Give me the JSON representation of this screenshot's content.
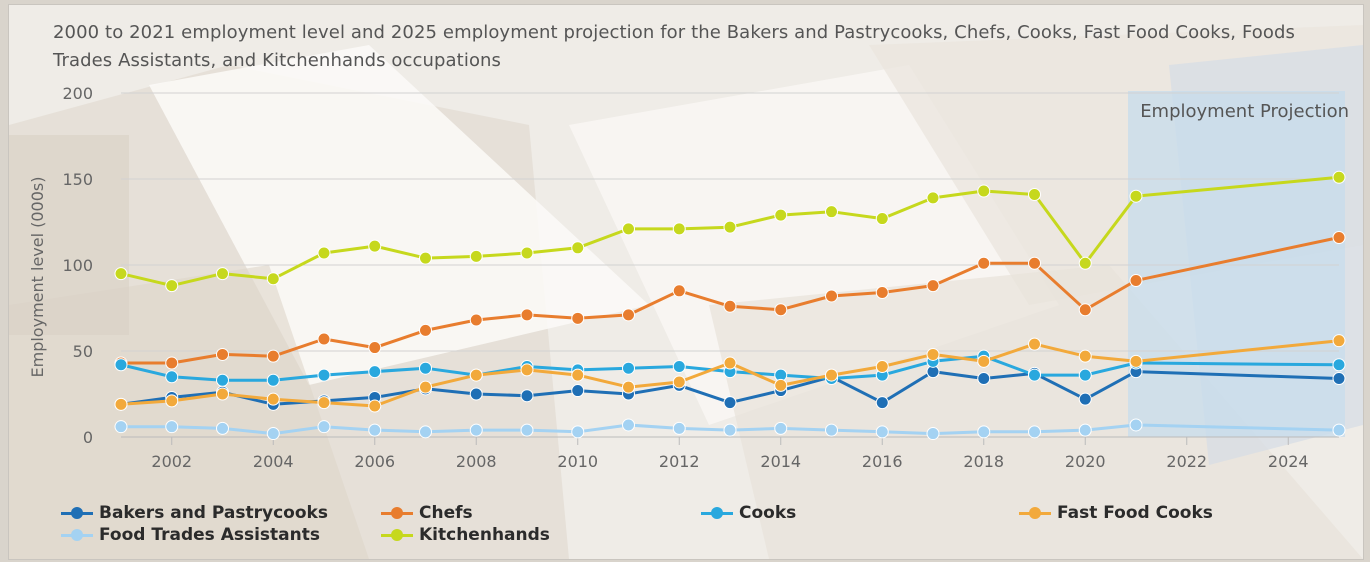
{
  "chart_data": {
    "type": "line",
    "title": "2000 to 2021 employment level and 2025 employment projection for the Bakers and Pastrycooks, Chefs, Cooks, Fast Food Cooks, Foods Trades Assistants, and Kitchenhands occupations",
    "ylabel": "Employment level (000s)",
    "xlabel": "",
    "xlim": [
      2001,
      2025
    ],
    "ylim": [
      0,
      200
    ],
    "x_ticks": [
      "2002",
      "2004",
      "2006",
      "2008",
      "2010",
      "2012",
      "2014",
      "2016",
      "2018",
      "2020",
      "2022",
      "2024"
    ],
    "y_ticks": [
      "0",
      "50",
      "100",
      "150",
      "200"
    ],
    "grid": "horizontal",
    "legend_position": "bottom",
    "annotation": "Employment Projection",
    "projection_range": [
      2021,
      2025
    ],
    "series": [
      {
        "name": "Bakers and Pastrycooks",
        "color": "#1f6fb5",
        "x": [
          2001,
          2002,
          2003,
          2004,
          2005,
          2006,
          2007,
          2008,
          2009,
          2010,
          2011,
          2012,
          2013,
          2014,
          2015,
          2016,
          2017,
          2018,
          2019,
          2020,
          2021,
          2025
        ],
        "y": [
          19,
          23,
          26,
          19,
          21,
          23,
          28,
          25,
          24,
          27,
          25,
          30,
          20,
          27,
          35,
          20,
          38,
          34,
          37,
          22,
          38,
          34
        ]
      },
      {
        "name": "Chefs",
        "color": "#e87d2e",
        "x": [
          2001,
          2002,
          2003,
          2004,
          2005,
          2006,
          2007,
          2008,
          2009,
          2010,
          2011,
          2012,
          2013,
          2014,
          2015,
          2016,
          2017,
          2018,
          2019,
          2020,
          2021,
          2025
        ],
        "y": [
          43,
          43,
          48,
          47,
          57,
          52,
          62,
          68,
          71,
          69,
          71,
          85,
          76,
          74,
          82,
          84,
          88,
          101,
          101,
          74,
          91,
          116
        ]
      },
      {
        "name": "Cooks",
        "color": "#29a8de",
        "x": [
          2001,
          2002,
          2003,
          2004,
          2005,
          2006,
          2007,
          2008,
          2009,
          2010,
          2011,
          2012,
          2013,
          2014,
          2015,
          2016,
          2017,
          2018,
          2019,
          2020,
          2021,
          2025
        ],
        "y": [
          42,
          35,
          33,
          33,
          36,
          38,
          40,
          36,
          41,
          39,
          40,
          41,
          38,
          36,
          34,
          36,
          44,
          47,
          36,
          36,
          43,
          42
        ]
      },
      {
        "name": "Fast Food Cooks",
        "color": "#f2a93b",
        "x": [
          2001,
          2002,
          2003,
          2004,
          2005,
          2006,
          2007,
          2008,
          2009,
          2010,
          2011,
          2012,
          2013,
          2014,
          2015,
          2016,
          2017,
          2018,
          2019,
          2020,
          2021,
          2025
        ],
        "y": [
          19,
          21,
          25,
          22,
          20,
          18,
          29,
          36,
          39,
          36,
          29,
          32,
          43,
          30,
          36,
          41,
          48,
          44,
          54,
          47,
          44,
          56
        ]
      },
      {
        "name": "Food Trades Assistants",
        "color": "#a4d2f2",
        "x": [
          2001,
          2002,
          2003,
          2004,
          2005,
          2006,
          2007,
          2008,
          2009,
          2010,
          2011,
          2012,
          2013,
          2014,
          2015,
          2016,
          2017,
          2018,
          2019,
          2020,
          2021,
          2025
        ],
        "y": [
          6,
          6,
          5,
          2,
          6,
          4,
          3,
          4,
          4,
          3,
          7,
          5,
          4,
          5,
          4,
          3,
          2,
          3,
          3,
          4,
          7,
          4
        ]
      },
      {
        "name": "Kitchenhands",
        "color": "#c6d81d",
        "x": [
          2001,
          2002,
          2003,
          2004,
          2005,
          2006,
          2007,
          2008,
          2009,
          2010,
          2011,
          2012,
          2013,
          2014,
          2015,
          2016,
          2017,
          2018,
          2019,
          2020,
          2021,
          2025
        ],
        "y": [
          95,
          88,
          95,
          92,
          107,
          111,
          104,
          105,
          107,
          110,
          121,
          121,
          122,
          129,
          131,
          127,
          139,
          143,
          141,
          101,
          140,
          151
        ]
      }
    ]
  }
}
